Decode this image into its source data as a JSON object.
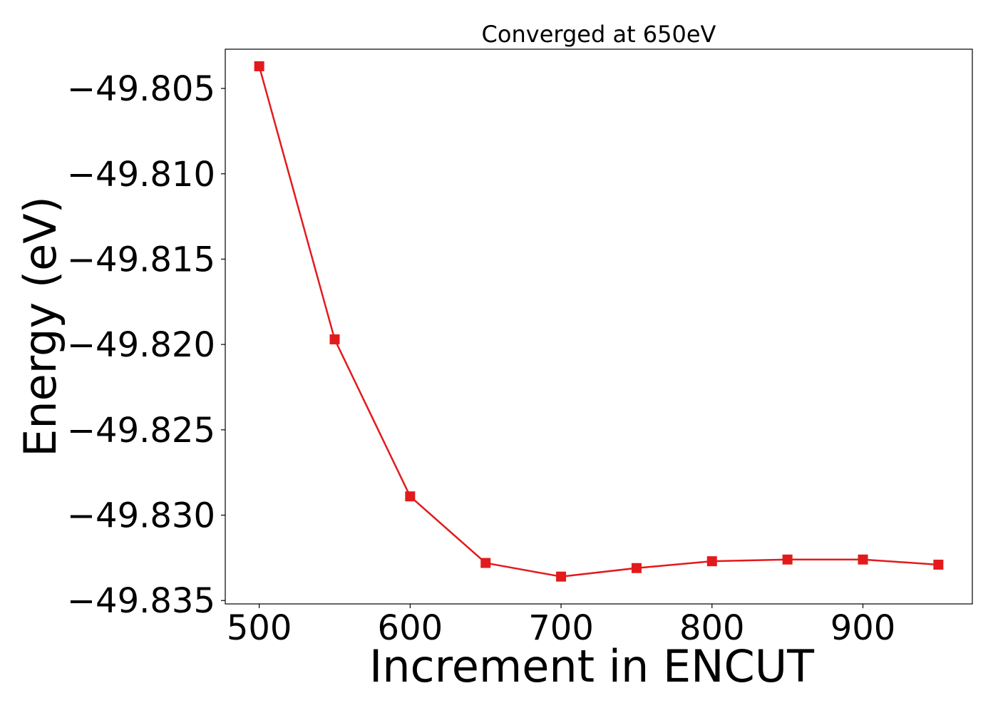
{
  "chart_data": {
    "type": "line",
    "title": "Converged at 650eV",
    "xlabel": "Increment in ENCUT",
    "ylabel": "Energy (eV)",
    "xlim": [
      477.5,
      972.5
    ],
    "ylim": [
      -49.8352,
      -49.8027
    ],
    "xticks": [
      500,
      600,
      700,
      800,
      900
    ],
    "xtick_labels": [
      "500",
      "600",
      "700",
      "800",
      "900"
    ],
    "yticks": [
      -49.805,
      -49.81,
      -49.815,
      -49.82,
      -49.825,
      -49.83,
      -49.835
    ],
    "ytick_labels": [
      "−49.805",
      "−49.810",
      "−49.815",
      "−49.820",
      "−49.825",
      "−49.830",
      "−49.835"
    ],
    "grid": false,
    "series": [
      {
        "color": "#e31a1c",
        "marker": "square",
        "x": [
          500,
          550,
          600,
          650,
          700,
          750,
          800,
          850,
          900,
          950
        ],
        "y": [
          -49.8037,
          -49.8197,
          -49.8289,
          -49.8328,
          -49.8336,
          -49.8331,
          -49.8327,
          -49.8326,
          -49.8326,
          -49.8329
        ]
      }
    ]
  }
}
